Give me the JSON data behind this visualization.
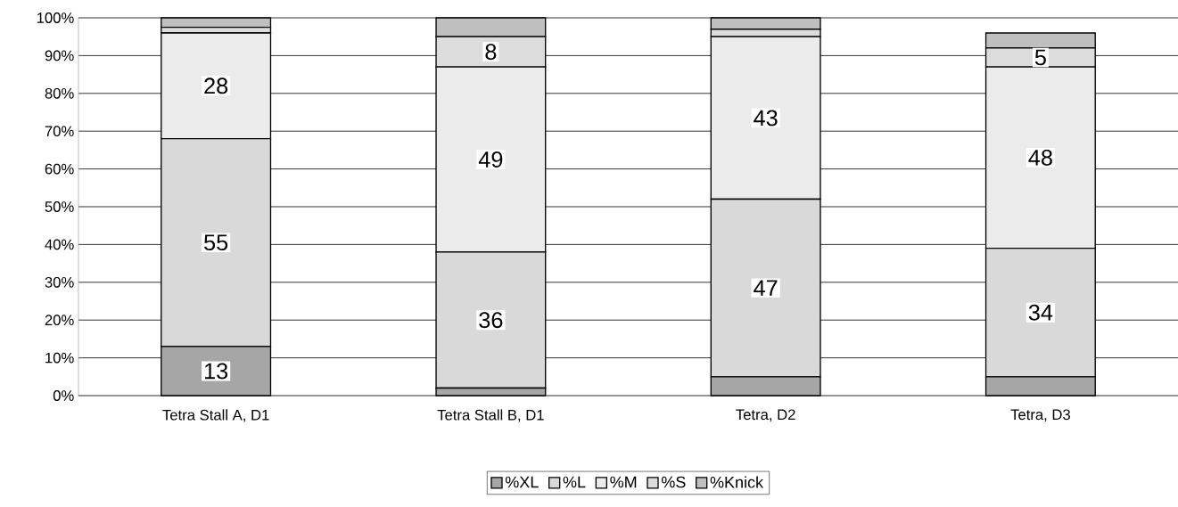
{
  "chart_data": {
    "type": "bar",
    "stacked": true,
    "categories": [
      "Tetra Stall A, D1",
      "Tetra Stall B, D1",
      "Tetra, D2",
      "Tetra, D3"
    ],
    "series": [
      {
        "name": "%XL",
        "color": "#a6a6a6",
        "values": [
          13,
          2,
          5,
          5
        ],
        "value_labels": [
          "13",
          null,
          null,
          null
        ]
      },
      {
        "name": "%L",
        "color": "#d9d9d9",
        "values": [
          55,
          36,
          47,
          34
        ],
        "value_labels": [
          "55",
          "36",
          "47",
          "34"
        ]
      },
      {
        "name": "%M",
        "color": "#ebebeb",
        "values": [
          28,
          49,
          43,
          48
        ],
        "value_labels": [
          "28",
          "49",
          "43",
          "48"
        ]
      },
      {
        "name": "%S",
        "color": "#dcdcdc",
        "values": [
          1.5,
          8,
          2,
          5
        ],
        "value_labels": [
          null,
          "8",
          null,
          "5"
        ]
      },
      {
        "name": "%Knick",
        "color": "#bfbfbf",
        "values": [
          2.5,
          5,
          3,
          4
        ]
      }
    ],
    "ylim": [
      0,
      100
    ],
    "yticks": [
      {
        "value": 0,
        "label": "0%"
      },
      {
        "value": 10,
        "label": "10%"
      },
      {
        "value": 20,
        "label": "20%"
      },
      {
        "value": 30,
        "label": "30%"
      },
      {
        "value": 40,
        "label": "40%"
      },
      {
        "value": 50,
        "label": "50%"
      },
      {
        "value": 60,
        "label": "60%"
      },
      {
        "value": 70,
        "label": "70%"
      },
      {
        "value": 80,
        "label": "80%"
      },
      {
        "value": 90,
        "label": "90%"
      },
      {
        "value": 100,
        "label": "100%"
      }
    ],
    "grid": "y",
    "legend": "bottom"
  }
}
